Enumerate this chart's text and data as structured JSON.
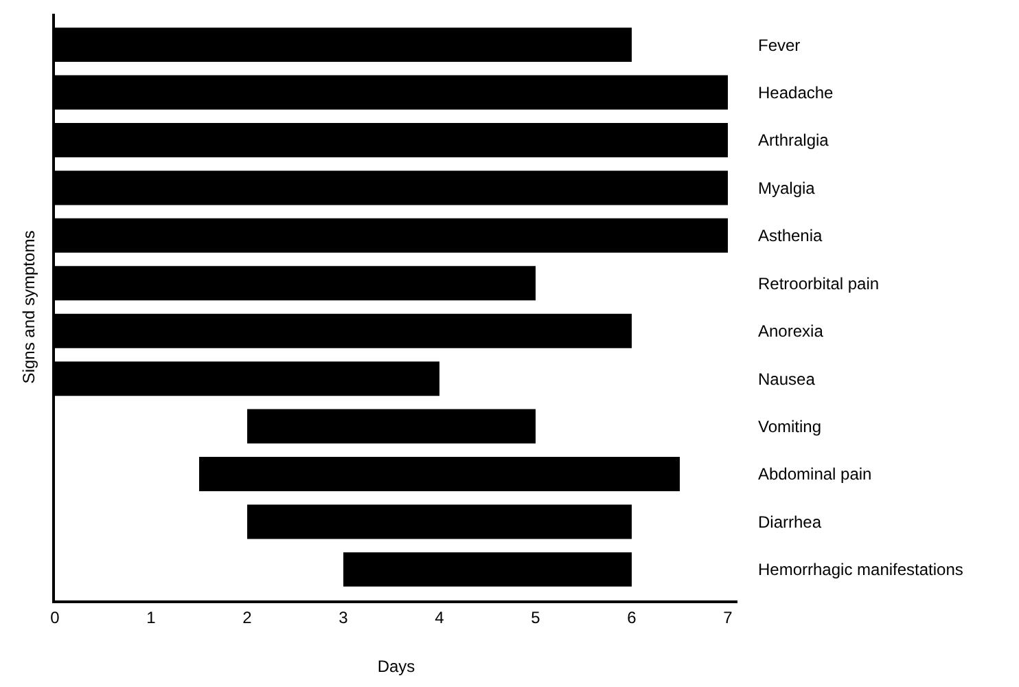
{
  "chart_data": {
    "type": "bar",
    "orientation": "horizontal",
    "xlabel": "Days",
    "ylabel": "Signs and symptoms",
    "categories": [
      "Fever",
      "Headache",
      "Arthralgia",
      "Myalgia",
      "Asthenia",
      "Retroorbital pain",
      "Anorexia",
      "Nausea",
      "Vomiting",
      "Abdominal pain",
      "Diarrhea",
      "Hemorrhagic manifestations"
    ],
    "base": [
      0,
      0,
      0,
      0,
      0,
      0,
      0,
      0,
      2,
      1.5,
      2,
      3
    ],
    "values": [
      6,
      7,
      7,
      7,
      7,
      5,
      6,
      4,
      3,
      5,
      4,
      3
    ],
    "color": "#000000",
    "xlim": [
      0,
      7.1
    ],
    "xticks": [
      0,
      1,
      2,
      3,
      4,
      5,
      6,
      7
    ]
  }
}
